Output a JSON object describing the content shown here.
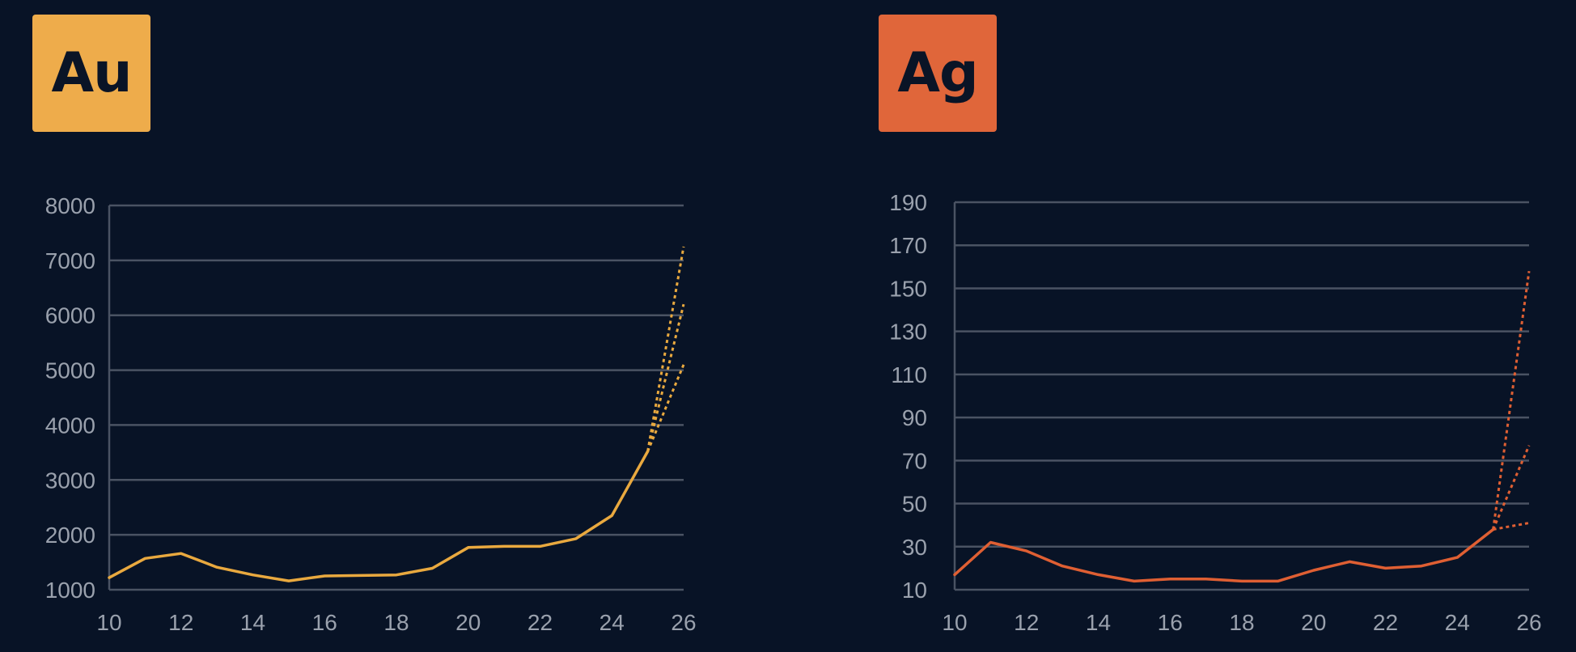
{
  "chart_data": [
    {
      "type": "line",
      "badge": "Au",
      "badge_color": "#eeac4b",
      "line_color": "#e9a93f",
      "title": "",
      "xlabel": "",
      "ylabel": "",
      "xlim": [
        10,
        26
      ],
      "ylim": [
        1000,
        8000
      ],
      "x_ticks": [
        10,
        12,
        14,
        16,
        18,
        20,
        22,
        24,
        26
      ],
      "y_ticks": [
        1000,
        2000,
        3000,
        4000,
        5000,
        6000,
        7000,
        8000
      ],
      "x_tick_labels": [
        "10",
        "12",
        "14",
        "16",
        "18",
        "20",
        "22",
        "24",
        "26"
      ],
      "y_tick_labels": [
        "1000",
        "2000",
        "3000",
        "4000",
        "5000",
        "6000",
        "7000",
        "8000"
      ],
      "grid": true,
      "series": [
        {
          "style": "solid",
          "x": [
            10,
            11,
            12,
            13,
            14,
            15,
            16,
            17,
            18,
            19,
            20,
            21,
            22,
            23,
            24,
            25
          ],
          "values": [
            1220,
            1570,
            1660,
            1410,
            1270,
            1160,
            1250,
            1260,
            1270,
            1390,
            1770,
            1790,
            1790,
            1930,
            2350,
            3520
          ]
        },
        {
          "style": "dotted",
          "x": [
            25,
            26
          ],
          "values": [
            3520,
            7250
          ]
        },
        {
          "style": "dotted",
          "x": [
            25,
            26
          ],
          "values": [
            3520,
            6200
          ]
        },
        {
          "style": "dotted",
          "x": [
            25,
            26
          ],
          "values": [
            3520,
            5100
          ]
        }
      ]
    },
    {
      "type": "line",
      "badge": "Ag",
      "badge_color": "#e0663a",
      "line_color": "#df5f33",
      "title": "",
      "xlabel": "",
      "ylabel": "",
      "xlim": [
        10,
        26
      ],
      "ylim": [
        10,
        190
      ],
      "x_ticks": [
        10,
        12,
        14,
        16,
        18,
        20,
        22,
        24,
        26
      ],
      "y_ticks": [
        10,
        30,
        50,
        70,
        90,
        110,
        130,
        150,
        170,
        190
      ],
      "x_tick_labels": [
        "10",
        "12",
        "14",
        "16",
        "18",
        "20",
        "22",
        "24",
        "26"
      ],
      "y_tick_labels": [
        "10",
        "30",
        "50",
        "70",
        "90",
        "110",
        "130",
        "150",
        "170",
        "190"
      ],
      "grid": true,
      "series": [
        {
          "style": "solid",
          "x": [
            10,
            11,
            12,
            13,
            14,
            15,
            16,
            17,
            18,
            19,
            20,
            21,
            22,
            23,
            24,
            25
          ],
          "values": [
            17,
            32,
            28,
            21,
            17,
            14,
            15,
            15,
            14,
            14,
            19,
            23,
            20,
            21,
            25,
            38
          ]
        },
        {
          "style": "dotted",
          "x": [
            25,
            26
          ],
          "values": [
            38,
            158
          ]
        },
        {
          "style": "dotted",
          "x": [
            25,
            26
          ],
          "values": [
            38,
            77
          ]
        },
        {
          "style": "dotted",
          "x": [
            25,
            26
          ],
          "values": [
            38,
            41
          ]
        }
      ]
    }
  ]
}
